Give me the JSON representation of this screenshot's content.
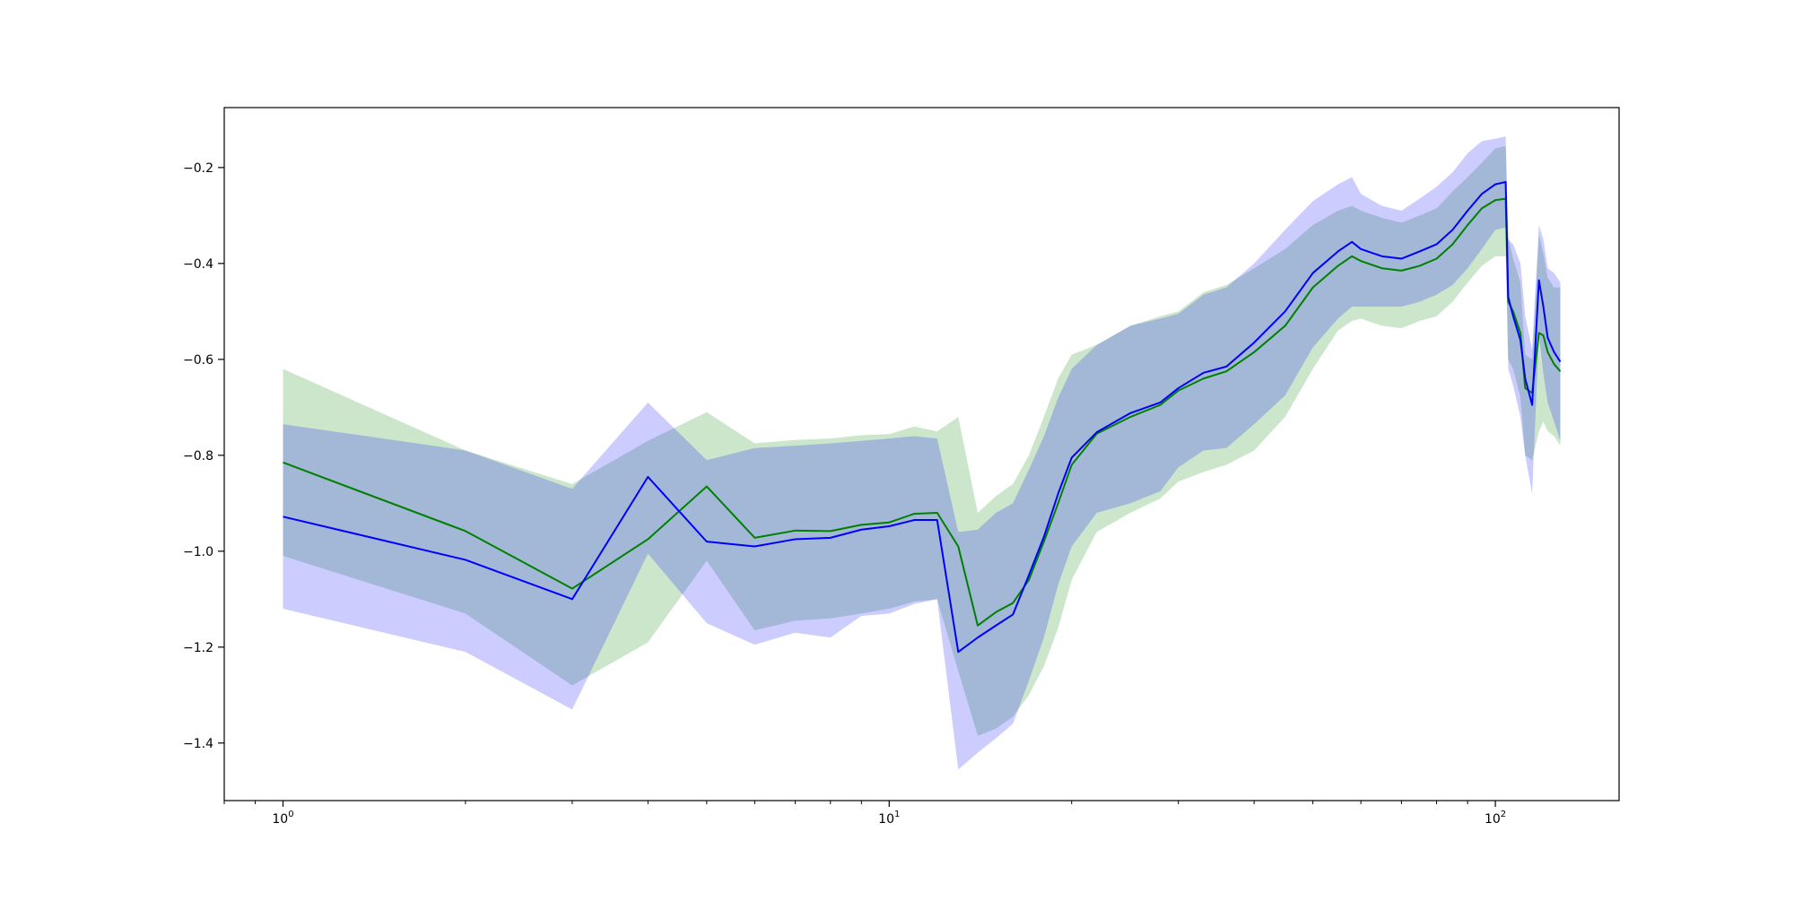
{
  "chart_data": {
    "type": "line",
    "title": "",
    "xlabel": "",
    "ylabel": "",
    "xscale": "log",
    "xlim": [
      0.8,
      160
    ],
    "ylim": [
      -1.52,
      -0.075
    ],
    "grid": false,
    "legend": "none",
    "x_ticks": [
      {
        "value": 1,
        "base": "10",
        "exp": "0"
      },
      {
        "value": 10,
        "base": "10",
        "exp": "1"
      },
      {
        "value": 100,
        "base": "10",
        "exp": "2"
      }
    ],
    "y_ticks": [
      {
        "value": -0.2,
        "label": "−0.2"
      },
      {
        "value": -0.4,
        "label": "−0.4"
      },
      {
        "value": -0.6,
        "label": "−0.6"
      },
      {
        "value": -0.8,
        "label": "−0.8"
      },
      {
        "value": -1.0,
        "label": "−1.0"
      },
      {
        "value": -1.2,
        "label": "−1.2"
      },
      {
        "value": -1.4,
        "label": "−1.4"
      }
    ],
    "series": [
      {
        "color": "#008000",
        "band_color": "#008000",
        "band_opacity": 0.2,
        "x": [
          1,
          2,
          3,
          4,
          5,
          6,
          7,
          8,
          9,
          10,
          11,
          12,
          13,
          14,
          15,
          16,
          17,
          18,
          19,
          20,
          22,
          25,
          28,
          30,
          33,
          36,
          40,
          45,
          50,
          55,
          58,
          60,
          65,
          70,
          75,
          80,
          85,
          90,
          95,
          100,
          104,
          105,
          107,
          110,
          112,
          115,
          118,
          120,
          122,
          125,
          128
        ],
        "mean": [
          -0.815,
          -0.958,
          -1.078,
          -0.975,
          -0.865,
          -0.972,
          -0.957,
          -0.958,
          -0.945,
          -0.94,
          -0.922,
          -0.92,
          -0.99,
          -1.155,
          -1.127,
          -1.108,
          -1.06,
          -0.98,
          -0.9,
          -0.82,
          -0.755,
          -0.72,
          -0.695,
          -0.665,
          -0.64,
          -0.625,
          -0.585,
          -0.53,
          -0.45,
          -0.405,
          -0.385,
          -0.395,
          -0.41,
          -0.415,
          -0.405,
          -0.39,
          -0.36,
          -0.32,
          -0.285,
          -0.268,
          -0.265,
          -0.48,
          -0.5,
          -0.545,
          -0.66,
          -0.67,
          -0.545,
          -0.55,
          -0.585,
          -0.61,
          -0.625
        ],
        "upper": [
          -0.62,
          -0.79,
          -0.86,
          -0.77,
          -0.71,
          -0.775,
          -0.768,
          -0.765,
          -0.758,
          -0.756,
          -0.74,
          -0.75,
          -0.72,
          -0.92,
          -0.885,
          -0.86,
          -0.8,
          -0.72,
          -0.64,
          -0.59,
          -0.57,
          -0.53,
          -0.51,
          -0.5,
          -0.46,
          -0.445,
          -0.41,
          -0.37,
          -0.32,
          -0.29,
          -0.28,
          -0.29,
          -0.305,
          -0.315,
          -0.3,
          -0.285,
          -0.25,
          -0.22,
          -0.19,
          -0.16,
          -0.155,
          -0.345,
          -0.39,
          -0.44,
          -0.59,
          -0.6,
          -0.34,
          -0.38,
          -0.43,
          -0.45,
          -0.45
        ],
        "lower": [
          -1.01,
          -1.13,
          -1.28,
          -1.19,
          -1.02,
          -1.165,
          -1.145,
          -1.14,
          -1.13,
          -1.12,
          -1.105,
          -1.1,
          -1.25,
          -1.385,
          -1.37,
          -1.345,
          -1.3,
          -1.24,
          -1.16,
          -1.06,
          -0.96,
          -0.92,
          -0.89,
          -0.855,
          -0.835,
          -0.82,
          -0.79,
          -0.72,
          -0.62,
          -0.54,
          -0.52,
          -0.515,
          -0.53,
          -0.535,
          -0.52,
          -0.51,
          -0.48,
          -0.44,
          -0.405,
          -0.385,
          -0.385,
          -0.6,
          -0.62,
          -0.68,
          -0.8,
          -0.81,
          -0.75,
          -0.73,
          -0.75,
          -0.76,
          -0.78
        ]
      },
      {
        "color": "#0000ff",
        "band_color": "#0000ff",
        "band_opacity": 0.2,
        "x": [
          1,
          2,
          3,
          4,
          5,
          6,
          7,
          8,
          9,
          10,
          11,
          12,
          13,
          14,
          15,
          16,
          17,
          18,
          19,
          20,
          22,
          25,
          28,
          30,
          33,
          36,
          40,
          45,
          50,
          55,
          58,
          60,
          65,
          70,
          75,
          80,
          85,
          90,
          95,
          100,
          104,
          105,
          107,
          110,
          112,
          115,
          118,
          120,
          122,
          125,
          128
        ],
        "mean": [
          -0.928,
          -1.018,
          -1.1,
          -0.845,
          -0.98,
          -0.99,
          -0.975,
          -0.972,
          -0.955,
          -0.948,
          -0.935,
          -0.935,
          -1.21,
          -1.18,
          -1.155,
          -1.132,
          -1.05,
          -0.97,
          -0.88,
          -0.805,
          -0.752,
          -0.712,
          -0.69,
          -0.66,
          -0.628,
          -0.615,
          -0.565,
          -0.5,
          -0.42,
          -0.375,
          -0.355,
          -0.37,
          -0.385,
          -0.39,
          -0.375,
          -0.36,
          -0.33,
          -0.29,
          -0.255,
          -0.235,
          -0.23,
          -0.47,
          -0.51,
          -0.56,
          -0.64,
          -0.695,
          -0.435,
          -0.49,
          -0.555,
          -0.585,
          -0.605
        ],
        "upper": [
          -0.735,
          -0.79,
          -0.87,
          -0.69,
          -0.81,
          -0.785,
          -0.78,
          -0.775,
          -0.77,
          -0.765,
          -0.76,
          -0.765,
          -0.96,
          -0.955,
          -0.92,
          -0.9,
          -0.83,
          -0.76,
          -0.68,
          -0.62,
          -0.57,
          -0.53,
          -0.515,
          -0.505,
          -0.465,
          -0.45,
          -0.4,
          -0.33,
          -0.27,
          -0.235,
          -0.22,
          -0.255,
          -0.28,
          -0.29,
          -0.265,
          -0.24,
          -0.21,
          -0.17,
          -0.145,
          -0.14,
          -0.135,
          -0.35,
          -0.36,
          -0.4,
          -0.51,
          -0.58,
          -0.32,
          -0.35,
          -0.41,
          -0.42,
          -0.44
        ],
        "lower": [
          -1.12,
          -1.21,
          -1.33,
          -1.005,
          -1.15,
          -1.195,
          -1.17,
          -1.18,
          -1.135,
          -1.13,
          -1.11,
          -1.1,
          -1.455,
          -1.42,
          -1.39,
          -1.36,
          -1.27,
          -1.18,
          -1.07,
          -0.99,
          -0.92,
          -0.9,
          -0.875,
          -0.825,
          -0.79,
          -0.785,
          -0.735,
          -0.675,
          -0.575,
          -0.515,
          -0.49,
          -0.49,
          -0.49,
          -0.49,
          -0.48,
          -0.465,
          -0.445,
          -0.41,
          -0.37,
          -0.33,
          -0.325,
          -0.62,
          -0.655,
          -0.72,
          -0.8,
          -0.88,
          -0.55,
          -0.63,
          -0.69,
          -0.73,
          -0.77
        ]
      }
    ]
  }
}
